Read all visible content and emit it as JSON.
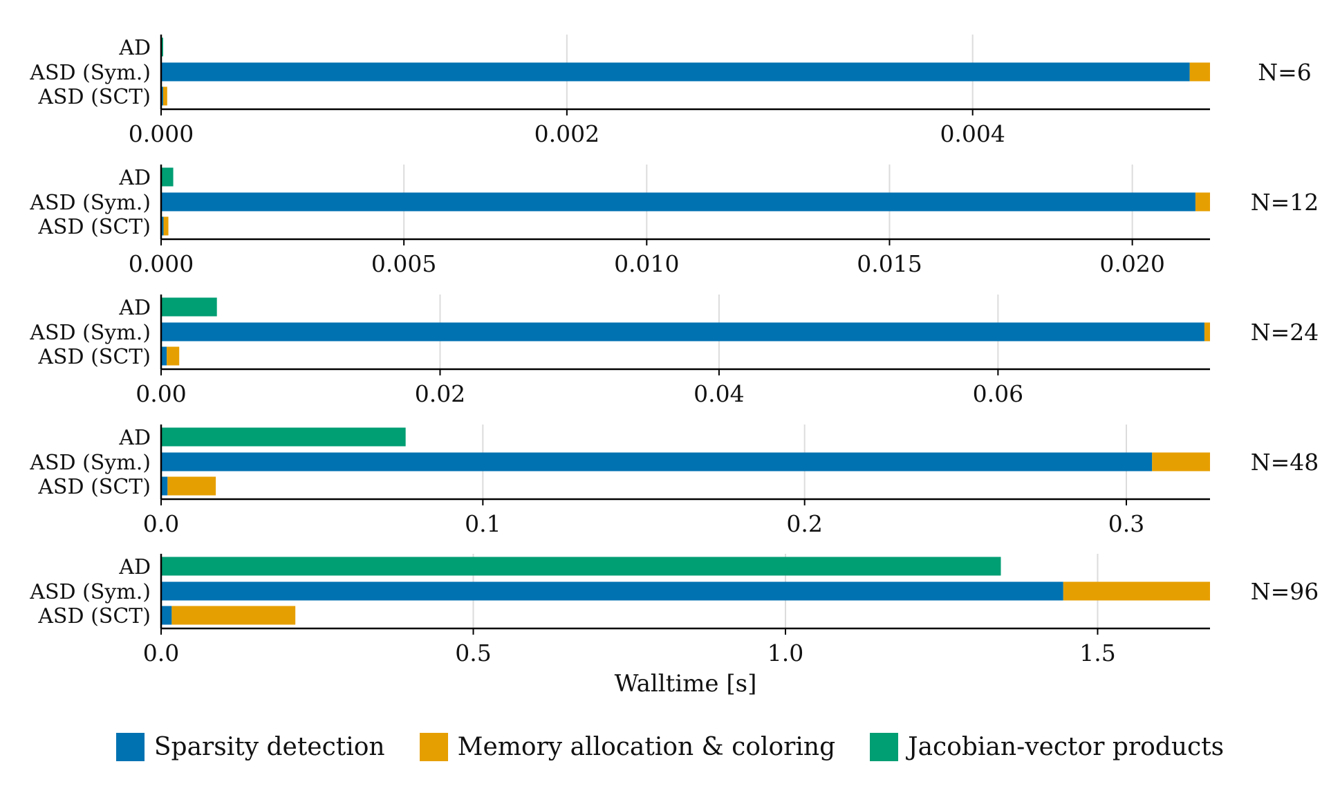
{
  "chart_data": {
    "type": "bar",
    "orientation": "horizontal",
    "stacked": true,
    "xlabel": "Walltime [s]",
    "grid": "vertical",
    "legend_position": "bottom",
    "categories": [
      "AD",
      "ASD (Sym.)",
      "ASD (SCT)"
    ],
    "series_meta": [
      {
        "name": "Sparsity detection",
        "color": "#0072B2"
      },
      {
        "name": "Memory allocation & coloring",
        "color": "#E69F00"
      },
      {
        "name": "Jacobian-vector products",
        "color": "#009E73"
      }
    ],
    "panels": [
      {
        "label": "N=6",
        "xlim": [
          0,
          0.00517
        ],
        "ticks": [
          0,
          0.002,
          0.004
        ],
        "tick_labels": [
          "0.000",
          "0.002",
          "0.004"
        ],
        "values": {
          "Sparsity detection": [
            0,
            0.00507,
            1e-05
          ],
          "Memory allocation & coloring": [
            0,
            0.0001,
            2e-05
          ],
          "Jacobian-vector products": [
            1e-05,
            0,
            0
          ]
        }
      },
      {
        "label": "N=12",
        "xlim": [
          0,
          0.0216
        ],
        "ticks": [
          0,
          0.005,
          0.01,
          0.015,
          0.02
        ],
        "tick_labels": [
          "0.000",
          "0.005",
          "0.010",
          "0.015",
          "0.020"
        ],
        "values": {
          "Sparsity detection": [
            0,
            0.0213,
            5e-05
          ],
          "Memory allocation & coloring": [
            0,
            0.0003,
            0.0001
          ],
          "Jacobian-vector products": [
            0.00025,
            0,
            0
          ]
        }
      },
      {
        "label": "N=24",
        "xlim": [
          0,
          0.0752
        ],
        "ticks": [
          0,
          0.02,
          0.04,
          0.06
        ],
        "tick_labels": [
          "0.00",
          "0.02",
          "0.04",
          "0.06"
        ],
        "values": {
          "Sparsity detection": [
            0,
            0.0748,
            0.0004
          ],
          "Memory allocation & coloring": [
            0,
            0.0004,
            0.0009
          ],
          "Jacobian-vector products": [
            0.004,
            0,
            0
          ]
        }
      },
      {
        "label": "N=48",
        "xlim": [
          0,
          0.326
        ],
        "ticks": [
          0,
          0.1,
          0.2,
          0.3
        ],
        "tick_labels": [
          "0.0",
          "0.1",
          "0.2",
          "0.3"
        ],
        "values": {
          "Sparsity detection": [
            0,
            0.308,
            0.002
          ],
          "Memory allocation & coloring": [
            0,
            0.018,
            0.015
          ],
          "Jacobian-vector products": [
            0.076,
            0,
            0
          ]
        }
      },
      {
        "label": "N=96",
        "xlim": [
          0,
          1.68
        ],
        "ticks": [
          0,
          0.5,
          1.0,
          1.5
        ],
        "tick_labels": [
          "0.0",
          "0.5",
          "1.0",
          "1.5"
        ],
        "values": {
          "Sparsity detection": [
            0,
            1.445,
            0.017
          ],
          "Memory allocation & coloring": [
            0,
            0.235,
            0.198
          ],
          "Jacobian-vector products": [
            1.345,
            0,
            0
          ]
        }
      }
    ]
  }
}
